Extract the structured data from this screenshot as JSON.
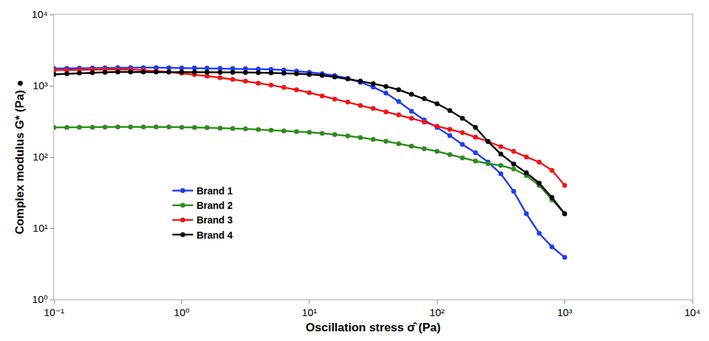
{
  "chart_data": {
    "type": "line",
    "marker": "circle",
    "log": true,
    "grid": false,
    "legend": "lower left",
    "x_label": "Oscillation stress σ̂ (Pa)",
    "y_label": "Complex modulus G* (Pa) ●",
    "xlim": [
      0.1,
      10000
    ],
    "ylim": [
      1,
      10000
    ],
    "xticks": [
      {
        "value": 0.1,
        "label": "10⁻¹"
      },
      {
        "value": 1,
        "label": "10⁰"
      },
      {
        "value": 10,
        "label": "10¹"
      },
      {
        "value": 100,
        "label": "10²"
      },
      {
        "value": 1000,
        "label": "10³"
      },
      {
        "value": 10000,
        "label": "10⁴"
      }
    ],
    "yticks": [
      {
        "value": 1,
        "label": "10⁰"
      },
      {
        "value": 10,
        "label": "10¹"
      },
      {
        "value": 100,
        "label": "10²"
      },
      {
        "value": 1000,
        "label": "10³"
      },
      {
        "value": 10000,
        "label": "10⁴"
      }
    ],
    "x": [
      0.1,
      0.126,
      0.158,
      0.2,
      0.251,
      0.316,
      0.398,
      0.501,
      0.631,
      0.794,
      1,
      1.26,
      1.58,
      2,
      2.51,
      3.16,
      3.98,
      5.01,
      6.31,
      7.94,
      10,
      12.6,
      15.8,
      20,
      25.1,
      31.6,
      39.8,
      50.1,
      63.1,
      79.4,
      100,
      126,
      158,
      200,
      251,
      316,
      398,
      501,
      631,
      794,
      1000
    ],
    "series": [
      {
        "name": "Brand 1",
        "color": "#1f3cf0",
        "values": [
          1750,
          1760,
          1770,
          1780,
          1790,
          1800,
          1800,
          1800,
          1800,
          1790,
          1780,
          1780,
          1770,
          1760,
          1750,
          1740,
          1720,
          1700,
          1660,
          1610,
          1550,
          1480,
          1390,
          1270,
          1120,
          960,
          790,
          600,
          440,
          330,
          260,
          200,
          150,
          115,
          85,
          58,
          33,
          16,
          8.5,
          5.5,
          3.9
        ]
      },
      {
        "name": "Brand 2",
        "color": "#2e8b1e",
        "values": [
          260,
          260,
          262,
          262,
          263,
          264,
          265,
          265,
          265,
          264,
          262,
          260,
          258,
          255,
          252,
          248,
          243,
          238,
          233,
          228,
          222,
          215,
          207,
          198,
          188,
          177,
          166,
          154,
          142,
          131,
          120,
          108,
          97,
          88,
          81,
          76,
          68,
          55,
          40,
          25,
          16
        ]
      },
      {
        "name": "Brand 3",
        "color": "#f01414",
        "values": [
          1650,
          1660,
          1680,
          1690,
          1700,
          1700,
          1690,
          1660,
          1610,
          1560,
          1500,
          1440,
          1370,
          1300,
          1230,
          1160,
          1090,
          1020,
          950,
          880,
          800,
          720,
          650,
          590,
          530,
          480,
          430,
          390,
          350,
          310,
          270,
          245,
          220,
          190,
          165,
          140,
          120,
          100,
          85,
          65,
          40
        ]
      },
      {
        "name": "Brand 4",
        "color": "#000000",
        "values": [
          1450,
          1480,
          1510,
          1530,
          1550,
          1560,
          1560,
          1560,
          1560,
          1560,
          1560,
          1560,
          1555,
          1550,
          1545,
          1540,
          1530,
          1520,
          1500,
          1480,
          1450,
          1400,
          1330,
          1250,
          1160,
          1070,
          980,
          880,
          760,
          660,
          560,
          450,
          350,
          260,
          165,
          110,
          80,
          60,
          43,
          27,
          16
        ]
      }
    ]
  }
}
